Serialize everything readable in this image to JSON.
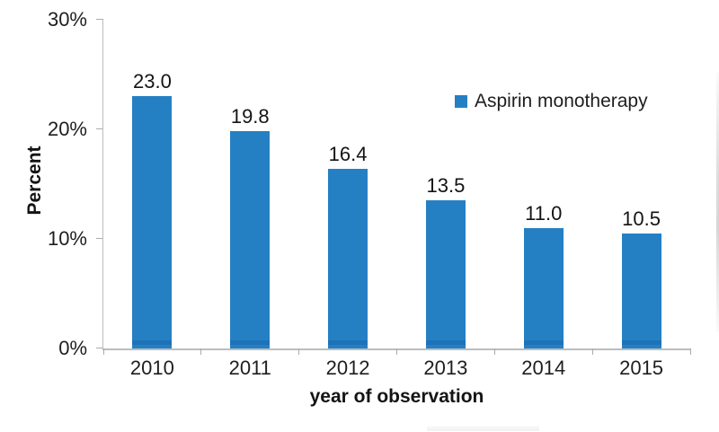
{
  "chart_data": {
    "type": "bar",
    "title": "",
    "categories": [
      "2010",
      "2011",
      "2012",
      "2013",
      "2014",
      "2015"
    ],
    "series": [
      {
        "name": "Aspirin monotherapy",
        "values": [
          23.0,
          19.8,
          16.4,
          13.5,
          11.0,
          10.5
        ],
        "color": "#2580C3"
      }
    ],
    "data_labels": [
      "23.0",
      "19.8",
      "16.4",
      "13.5",
      "11.0",
      "10.5"
    ],
    "xlabel": "year of observation",
    "ylabel": "Percent",
    "ylim": [
      0,
      30
    ],
    "yticks": [
      {
        "value": 0,
        "label": "0%"
      },
      {
        "value": 10,
        "label": "10%"
      },
      {
        "value": 20,
        "label": "20%"
      },
      {
        "value": 30,
        "label": "30%"
      }
    ],
    "grid": false,
    "legend": {
      "position": "inside-top-right",
      "entries": [
        {
          "label": "Aspirin monotherapy",
          "color": "#2580C3"
        }
      ]
    },
    "colors": {
      "bar": "#2580C3",
      "bar_shade": "#1E72B8",
      "axis_line": "#BDBDBD",
      "tick": "#ABABAB",
      "text": "#141414"
    }
  }
}
